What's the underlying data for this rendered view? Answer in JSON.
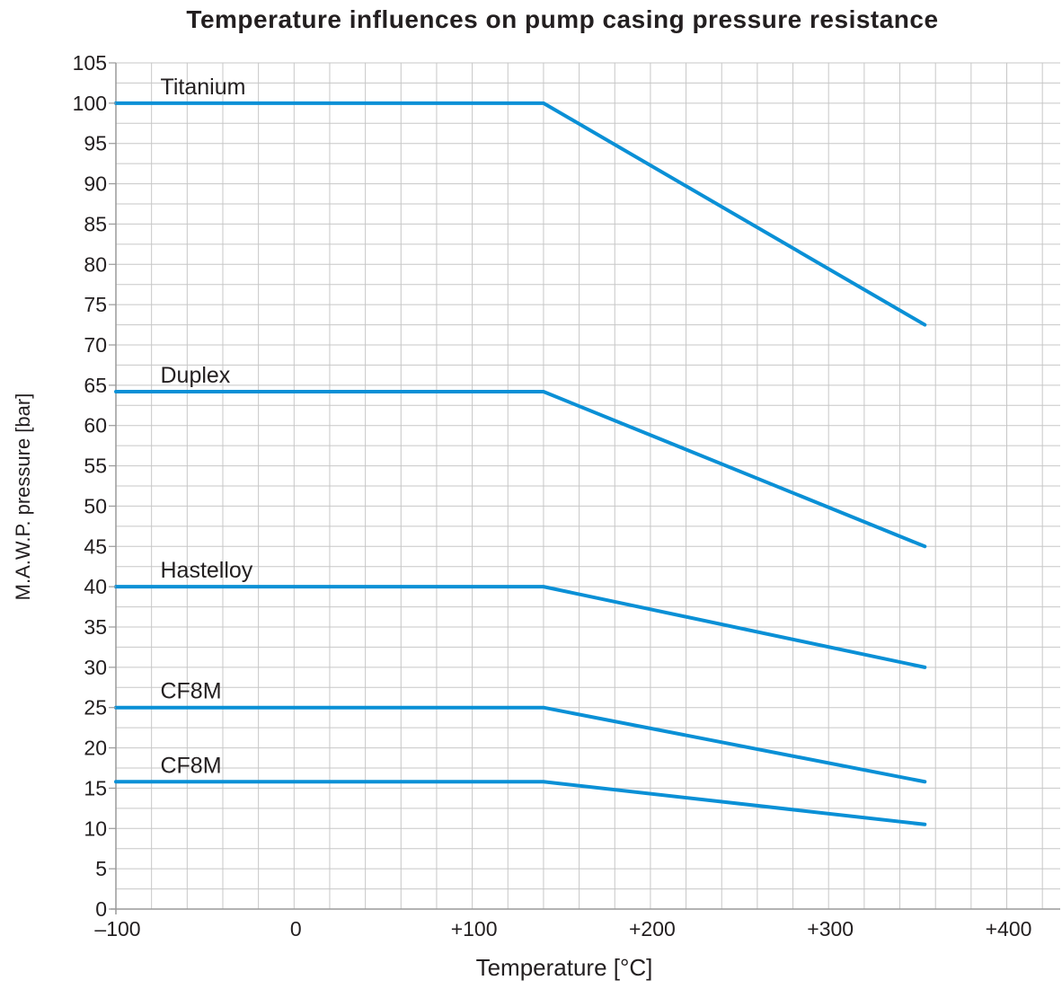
{
  "chart_data": {
    "type": "line",
    "title": "Temperature influences on pump casing pressure resistance",
    "xlabel": "Temperature [°C]",
    "ylabel": "M.A.W.P. pressure [bar]",
    "xlim": [
      -100,
      430
    ],
    "ylim": [
      0,
      105
    ],
    "x_ticks": [
      {
        "value": -100,
        "label": "–100"
      },
      {
        "value": 0,
        "label": "0"
      },
      {
        "value": 100,
        "label": "+100"
      },
      {
        "value": 200,
        "label": "+200"
      },
      {
        "value": 300,
        "label": "+300"
      },
      {
        "value": 400,
        "label": "+400"
      }
    ],
    "y_ticks": [
      {
        "value": 0,
        "label": "0"
      },
      {
        "value": 5,
        "label": "5"
      },
      {
        "value": 10,
        "label": "10"
      },
      {
        "value": 15,
        "label": "15"
      },
      {
        "value": 20,
        "label": "20"
      },
      {
        "value": 25,
        "label": "25"
      },
      {
        "value": 30,
        "label": "30"
      },
      {
        "value": 35,
        "label": "35"
      },
      {
        "value": 40,
        "label": "40"
      },
      {
        "value": 45,
        "label": "45"
      },
      {
        "value": 50,
        "label": "50"
      },
      {
        "value": 55,
        "label": "55"
      },
      {
        "value": 60,
        "label": "60"
      },
      {
        "value": 65,
        "label": "65"
      },
      {
        "value": 70,
        "label": "70"
      },
      {
        "value": 75,
        "label": "75"
      },
      {
        "value": 80,
        "label": "80"
      },
      {
        "value": 85,
        "label": "85"
      },
      {
        "value": 90,
        "label": "90"
      },
      {
        "value": 95,
        "label": "95"
      },
      {
        "value": 100,
        "label": "100"
      },
      {
        "value": 105,
        "label": "105"
      }
    ],
    "grid": true,
    "line_color": "#0a90d6",
    "series": [
      {
        "name": "Titanium",
        "x": [
          -100,
          140,
          354
        ],
        "y": [
          100,
          100,
          72.5
        ]
      },
      {
        "name": "Duplex",
        "x": [
          -100,
          140,
          354
        ],
        "y": [
          64.2,
          64.2,
          45
        ]
      },
      {
        "name": "Hastelloy",
        "x": [
          -100,
          140,
          354
        ],
        "y": [
          40,
          40,
          30
        ]
      },
      {
        "name": "CF8M",
        "x": [
          -100,
          140,
          354
        ],
        "y": [
          25,
          25,
          15.8
        ]
      },
      {
        "name": "CF8M",
        "x": [
          -100,
          140,
          354
        ],
        "y": [
          15.8,
          15.8,
          10.5
        ]
      }
    ]
  }
}
